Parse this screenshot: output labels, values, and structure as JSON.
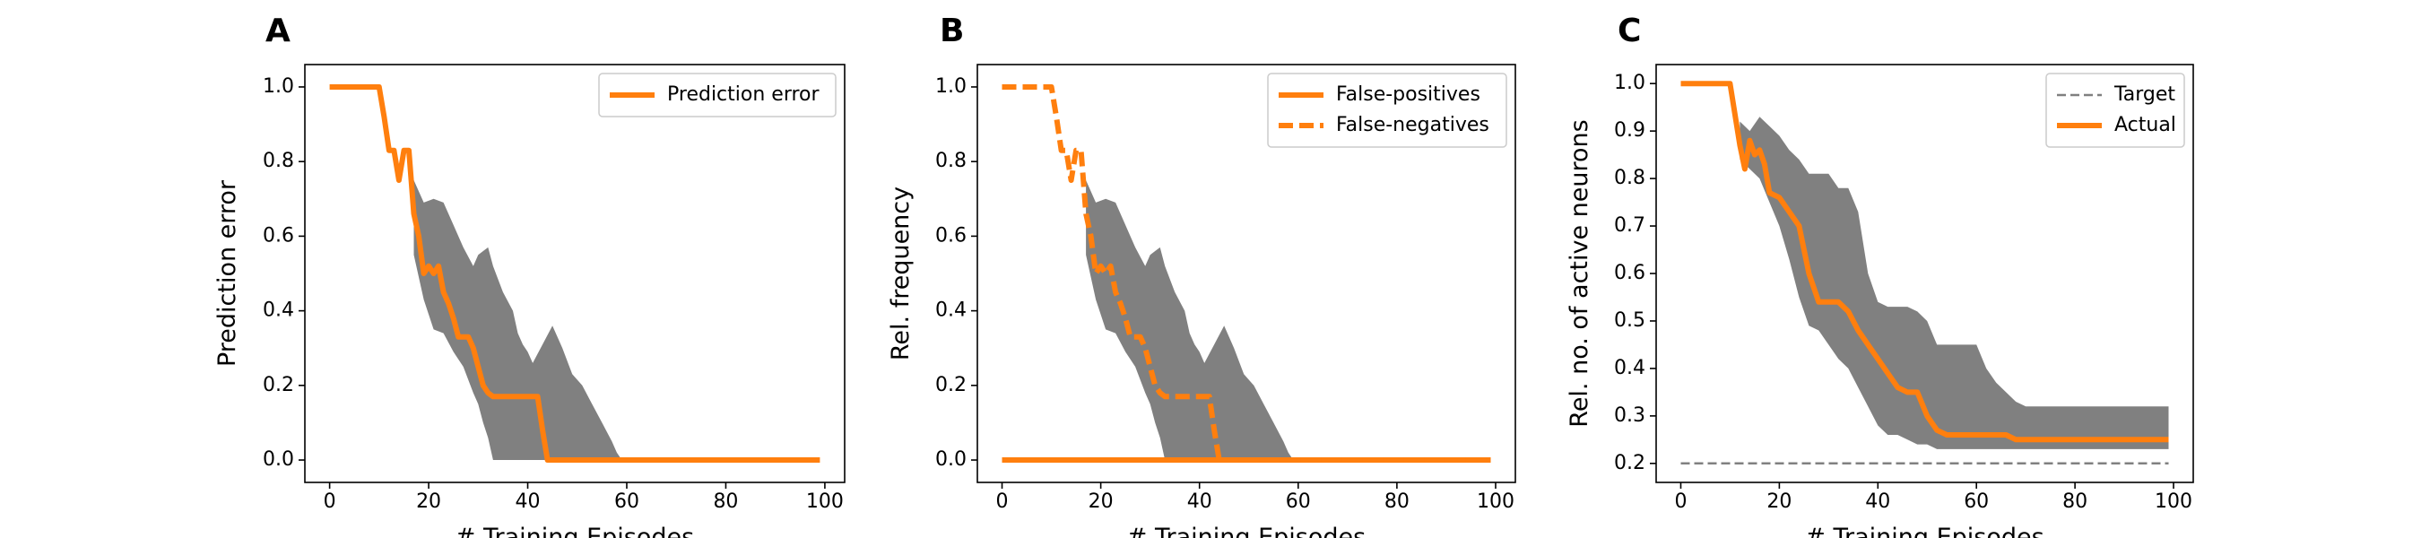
{
  "colors": {
    "series": "#ff7f0e",
    "band": "#808080",
    "target": "#808080",
    "axis": "#000000"
  },
  "chart_data": [
    {
      "type": "line",
      "panel_label": "A",
      "xlabel": "# Training Episodes",
      "ylabel": "Prediction error",
      "xlim": [
        -5,
        104
      ],
      "ylim": [
        -0.06,
        1.06
      ],
      "xticks": [
        0,
        20,
        40,
        60,
        80,
        100
      ],
      "yticks": [
        0.0,
        0.2,
        0.4,
        0.6,
        0.8,
        1.0
      ],
      "ytick_decimals": 1,
      "grid": false,
      "legend_position": "top-right",
      "band": {
        "x": [
          17,
          19,
          21,
          23,
          25,
          27,
          29,
          30,
          31,
          32,
          33,
          35,
          37,
          38,
          39,
          40,
          41,
          43,
          45,
          47,
          49,
          51,
          53,
          55,
          57,
          58,
          59
        ],
        "upper": [
          0.75,
          0.69,
          0.7,
          0.69,
          0.63,
          0.57,
          0.52,
          0.55,
          0.56,
          0.57,
          0.52,
          0.45,
          0.4,
          0.34,
          0.31,
          0.29,
          0.26,
          0.31,
          0.36,
          0.3,
          0.23,
          0.2,
          0.15,
          0.1,
          0.05,
          0.02,
          0.0
        ],
        "lower": [
          0.55,
          0.43,
          0.35,
          0.34,
          0.29,
          0.25,
          0.18,
          0.15,
          0.1,
          0.06,
          0.0,
          0.0,
          0.0,
          0.0,
          0.0,
          0.0,
          0.0,
          0.0,
          0.0,
          0.0,
          0.0,
          0.0,
          0.0,
          0.0,
          0.0,
          0.0,
          0.0
        ]
      },
      "series": [
        {
          "name": "Prediction error",
          "style": "solid",
          "x": [
            0,
            10,
            11,
            12,
            13,
            14,
            15,
            16,
            17,
            18,
            19,
            20,
            21,
            22,
            23,
            24,
            25,
            26,
            27,
            28,
            29,
            30,
            31,
            32,
            33,
            34,
            35,
            36,
            42,
            43,
            44,
            99
          ],
          "y": [
            1.0,
            1.0,
            0.92,
            0.83,
            0.83,
            0.75,
            0.83,
            0.83,
            0.66,
            0.6,
            0.5,
            0.52,
            0.5,
            0.52,
            0.45,
            0.42,
            0.38,
            0.33,
            0.33,
            0.33,
            0.3,
            0.25,
            0.2,
            0.18,
            0.17,
            0.17,
            0.17,
            0.17,
            0.17,
            0.08,
            0.0,
            0.0
          ]
        }
      ]
    },
    {
      "type": "line",
      "panel_label": "B",
      "xlabel": "# Training Episodes",
      "ylabel": "Rel. frequency",
      "xlim": [
        -5,
        104
      ],
      "ylim": [
        -0.06,
        1.06
      ],
      "xticks": [
        0,
        20,
        40,
        60,
        80,
        100
      ],
      "yticks": [
        0.0,
        0.2,
        0.4,
        0.6,
        0.8,
        1.0
      ],
      "ytick_decimals": 1,
      "grid": false,
      "legend_position": "top-right",
      "band": {
        "x": [
          17,
          19,
          21,
          23,
          25,
          27,
          29,
          30,
          31,
          32,
          33,
          35,
          37,
          38,
          39,
          40,
          41,
          43,
          45,
          47,
          49,
          51,
          53,
          55,
          57,
          58,
          59
        ],
        "upper": [
          0.75,
          0.69,
          0.7,
          0.69,
          0.63,
          0.57,
          0.52,
          0.55,
          0.56,
          0.57,
          0.52,
          0.45,
          0.4,
          0.34,
          0.31,
          0.29,
          0.26,
          0.31,
          0.36,
          0.3,
          0.23,
          0.2,
          0.15,
          0.1,
          0.05,
          0.02,
          0.0
        ],
        "lower": [
          0.55,
          0.43,
          0.35,
          0.34,
          0.29,
          0.25,
          0.18,
          0.15,
          0.1,
          0.06,
          0.0,
          0.0,
          0.0,
          0.0,
          0.0,
          0.0,
          0.0,
          0.0,
          0.0,
          0.0,
          0.0,
          0.0,
          0.0,
          0.0,
          0.0,
          0.0,
          0.0
        ]
      },
      "series": [
        {
          "name": "False-positives",
          "style": "solid",
          "x": [
            0,
            99
          ],
          "y": [
            0.0,
            0.0
          ]
        },
        {
          "name": "False-negatives",
          "style": "dashed",
          "x": [
            0,
            10,
            11,
            12,
            13,
            14,
            15,
            16,
            17,
            18,
            19,
            20,
            21,
            22,
            23,
            24,
            25,
            26,
            27,
            28,
            29,
            30,
            31,
            32,
            33,
            34,
            35,
            36,
            42,
            43,
            44,
            99
          ],
          "y": [
            1.0,
            1.0,
            0.92,
            0.83,
            0.83,
            0.75,
            0.83,
            0.83,
            0.66,
            0.6,
            0.5,
            0.52,
            0.5,
            0.52,
            0.45,
            0.42,
            0.38,
            0.33,
            0.33,
            0.33,
            0.3,
            0.25,
            0.2,
            0.18,
            0.17,
            0.17,
            0.17,
            0.17,
            0.17,
            0.08,
            0.0,
            0.0
          ]
        }
      ]
    },
    {
      "type": "line",
      "panel_label": "C",
      "xlabel": "# Training Episodes",
      "ylabel": "Rel. no. of active neurons",
      "xlim": [
        -5,
        104
      ],
      "ylim": [
        0.16,
        1.04
      ],
      "xticks": [
        0,
        20,
        40,
        60,
        80,
        100
      ],
      "yticks": [
        0.2,
        0.3,
        0.4,
        0.5,
        0.6,
        0.7,
        0.8,
        0.9,
        1.0
      ],
      "ytick_decimals": 1,
      "grid": false,
      "legend_position": "top-right",
      "band": {
        "x": [
          12,
          14,
          16,
          18,
          20,
          22,
          24,
          26,
          28,
          30,
          32,
          34,
          36,
          38,
          40,
          42,
          44,
          46,
          48,
          50,
          52,
          54,
          56,
          58,
          60,
          62,
          64,
          66,
          68,
          70,
          80,
          90,
          99
        ],
        "upper": [
          0.92,
          0.9,
          0.93,
          0.91,
          0.89,
          0.86,
          0.84,
          0.81,
          0.81,
          0.81,
          0.78,
          0.78,
          0.73,
          0.6,
          0.54,
          0.53,
          0.53,
          0.53,
          0.52,
          0.5,
          0.45,
          0.45,
          0.45,
          0.45,
          0.45,
          0.4,
          0.37,
          0.35,
          0.33,
          0.32,
          0.32,
          0.32,
          0.32
        ],
        "lower": [
          0.84,
          0.82,
          0.8,
          0.75,
          0.7,
          0.63,
          0.55,
          0.49,
          0.48,
          0.45,
          0.42,
          0.4,
          0.36,
          0.32,
          0.28,
          0.26,
          0.26,
          0.25,
          0.24,
          0.24,
          0.23,
          0.23,
          0.23,
          0.23,
          0.23,
          0.23,
          0.23,
          0.23,
          0.23,
          0.23,
          0.23,
          0.23,
          0.23
        ]
      },
      "series": [
        {
          "name": "Target",
          "style": "thin-dashed",
          "x": [
            0,
            99
          ],
          "y": [
            0.2,
            0.2
          ]
        },
        {
          "name": "Actual",
          "style": "solid",
          "x": [
            0,
            10,
            12,
            13,
            14,
            15,
            16,
            17,
            18,
            20,
            22,
            24,
            26,
            28,
            30,
            32,
            34,
            36,
            38,
            40,
            42,
            44,
            46,
            48,
            50,
            52,
            54,
            56,
            58,
            60,
            62,
            64,
            66,
            68,
            70,
            80,
            90,
            99
          ],
          "y": [
            1.0,
            1.0,
            0.87,
            0.82,
            0.88,
            0.85,
            0.86,
            0.83,
            0.77,
            0.76,
            0.73,
            0.7,
            0.6,
            0.54,
            0.54,
            0.54,
            0.52,
            0.48,
            0.45,
            0.42,
            0.39,
            0.36,
            0.35,
            0.35,
            0.3,
            0.27,
            0.26,
            0.26,
            0.26,
            0.26,
            0.26,
            0.26,
            0.26,
            0.25,
            0.25,
            0.25,
            0.25,
            0.25
          ]
        }
      ]
    }
  ]
}
